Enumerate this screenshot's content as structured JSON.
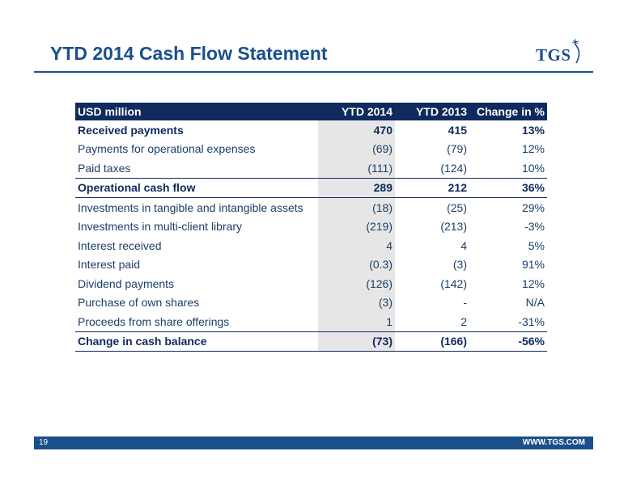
{
  "title": "YTD 2014 Cash Flow Statement",
  "logo": {
    "text": "TGS",
    "color": "#1a4f8b"
  },
  "table": {
    "headers": [
      "USD million",
      "YTD 2014",
      "YTD 2013",
      "Change in %"
    ],
    "rows": [
      {
        "label": "Received payments",
        "ytd2014": "470",
        "ytd2013": "415",
        "change": "13%"
      },
      {
        "label": "Payments for operational expenses",
        "ytd2014": "(69)",
        "ytd2013": "(79)",
        "change": "12%"
      },
      {
        "label": "Paid taxes",
        "ytd2014": "(111)",
        "ytd2013": "(124)",
        "change": "10%"
      },
      {
        "label": "Operational cash flow",
        "ytd2014": "289",
        "ytd2013": "212",
        "change": "36%"
      },
      {
        "label": "Investments in tangible and intangible assets",
        "ytd2014": "(18)",
        "ytd2013": "(25)",
        "change": "29%"
      },
      {
        "label": "Investments in multi-client library",
        "ytd2014": "(219)",
        "ytd2013": "(213)",
        "change": "-3%"
      },
      {
        "label": "Interest received",
        "ytd2014": "4",
        "ytd2013": "4",
        "change": "5%"
      },
      {
        "label": "Interest paid",
        "ytd2014": "(0.3)",
        "ytd2013": "(3)",
        "change": "91%"
      },
      {
        "label": "Dividend payments",
        "ytd2014": "(126)",
        "ytd2013": "(142)",
        "change": "12%"
      },
      {
        "label": "Purchase of own shares",
        "ytd2014": "(3)",
        "ytd2013": "-",
        "change": "N/A"
      },
      {
        "label": "Proceeds from share offerings",
        "ytd2014": "1",
        "ytd2013": "2",
        "change": "-31%"
      },
      {
        "label": "Change in cash balance",
        "ytd2014": "(73)",
        "ytd2013": "(166)",
        "change": "-56%"
      }
    ]
  },
  "footer": {
    "page_number": "19",
    "website": "WWW.TGS.COM"
  },
  "colors": {
    "brand": "#1a4f8b",
    "header_bg": "#0f2a5c",
    "highlight_col": "#e6e6e6"
  }
}
